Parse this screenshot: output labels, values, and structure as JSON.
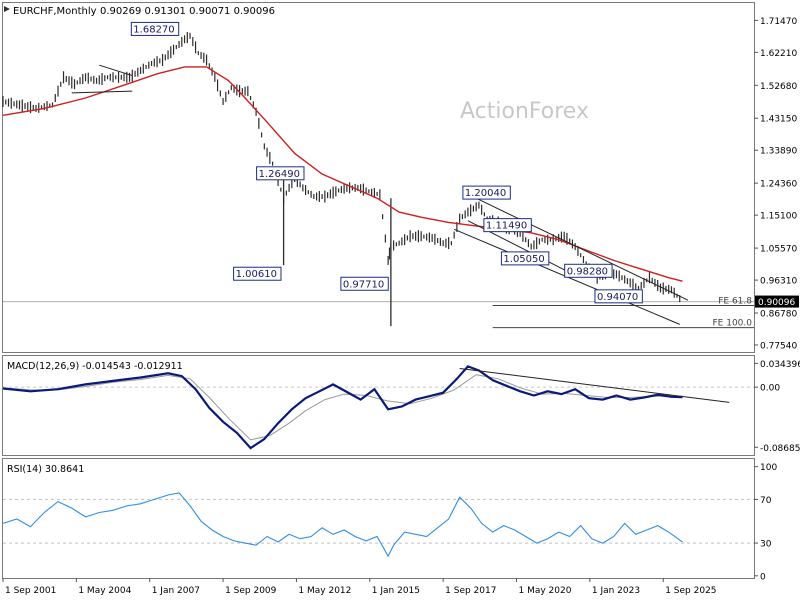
{
  "header": {
    "symbol": "EURCHF,Monthly",
    "ohlc": "0.90269 0.91301 0.90071 0.90096"
  },
  "watermark": "ActionForex",
  "colors": {
    "price": "#2b2b2b",
    "ma": "#d11f1f",
    "macd": "#0a1a7a",
    "signal": "#9a9a9a",
    "rsi": "#2f8ee6",
    "label_border": "#1a2d8c",
    "fe_line": "#444444"
  },
  "chart_data": [
    {
      "type": "line",
      "title": "EURCHF,Monthly",
      "subtitle": "0.90269 0.91301 0.90071 0.90096",
      "x_ticks": [
        "1 Sep 2001",
        "1 May 2004",
        "1 Jan 2007",
        "1 Sep 2009",
        "1 May 2012",
        "1 Jan 2015",
        "1 Sep 2017",
        "1 May 2020",
        "1 Jan 2023",
        "1 Sep 2025"
      ],
      "x_range": [
        2001.0,
        2028.3
      ],
      "y_ticks": [
        0.7754,
        0.8678,
        0.9631,
        1.0557,
        1.151,
        1.2436,
        1.3389,
        1.4315,
        1.5268,
        1.6221,
        1.7147
      ],
      "y_tick_labels": [
        "0.77540",
        "0.86780",
        "0.96310",
        "1.05570",
        "1.15100",
        "1.24360",
        "1.33890",
        "1.43150",
        "1.52680",
        "1.62210",
        "1.71470"
      ],
      "ylim": [
        0.755,
        1.765
      ],
      "last_price": "0.90096",
      "series": [
        {
          "values_note": "price",
          "x": [
            2001.0,
            2001.6,
            2002.2,
            2002.8,
            2003.2,
            2003.6,
            2004.0,
            2004.4,
            2004.8,
            2005.2,
            2005.6,
            2006.0,
            2006.4,
            2006.8,
            2007.2,
            2007.6,
            2007.8,
            2008.1,
            2008.4,
            2008.7,
            2009.0,
            2009.3,
            2009.6,
            2009.9,
            2010.2,
            2010.5,
            2010.8,
            2011.2,
            2011.6,
            2011.9,
            2012.3,
            2012.7,
            2013.1,
            2013.5,
            2013.9,
            2014.3,
            2014.7,
            2015.0,
            2015.1,
            2015.4,
            2015.8,
            2016.2,
            2016.6,
            2017.0,
            2017.3,
            2017.6,
            2017.9,
            2018.3,
            2018.6,
            2019.0,
            2019.4,
            2019.8,
            2020.2,
            2020.6,
            2021.0,
            2021.4,
            2021.8,
            2022.2,
            2022.6,
            2022.9,
            2023.3,
            2023.7,
            2024.1,
            2024.5,
            2024.9,
            2025.3,
            2025.7
          ],
          "y": [
            1.48,
            1.47,
            1.46,
            1.47,
            1.55,
            1.53,
            1.55,
            1.54,
            1.55,
            1.55,
            1.55,
            1.57,
            1.59,
            1.6,
            1.63,
            1.66,
            1.67,
            1.62,
            1.6,
            1.55,
            1.48,
            1.52,
            1.51,
            1.51,
            1.45,
            1.35,
            1.3,
            1.2,
            1.26,
            1.23,
            1.205,
            1.205,
            1.22,
            1.23,
            1.23,
            1.22,
            1.21,
            1.02,
            1.06,
            1.07,
            1.09,
            1.09,
            1.085,
            1.07,
            1.07,
            1.14,
            1.16,
            1.18,
            1.14,
            1.13,
            1.11,
            1.1,
            1.06,
            1.08,
            1.08,
            1.09,
            1.06,
            1.01,
            0.97,
            0.98,
            0.98,
            0.96,
            0.94,
            0.97,
            0.94,
            0.935,
            0.90096
          ]
        },
        {
          "values_note": "moving average",
          "x": [
            2001.0,
            2002.5,
            2004.0,
            2005.5,
            2006.6,
            2007.6,
            2008.4,
            2009.2,
            2009.8,
            2010.6,
            2011.6,
            2012.6,
            2013.6,
            2014.6,
            2015.4,
            2016.2,
            2017.2,
            2018.2,
            2019.2,
            2020.2,
            2021.2,
            2022.2,
            2023.2,
            2024.2,
            2025.2,
            2025.7
          ],
          "y": [
            1.44,
            1.46,
            1.49,
            1.53,
            1.56,
            1.58,
            1.58,
            1.54,
            1.49,
            1.42,
            1.33,
            1.27,
            1.235,
            1.2,
            1.16,
            1.145,
            1.13,
            1.12,
            1.11,
            1.1,
            1.08,
            1.05,
            1.02,
            0.995,
            0.97,
            0.96
          ]
        }
      ],
      "annotations": [
        "1.68270",
        "1.26490",
        "1.00610",
        "0.97710",
        "1.20040",
        "1.11490",
        "1.05050",
        "0.98280",
        "0.94070"
      ],
      "annotation_points": [
        {
          "x": 2007.3,
          "y": 1.6827
        },
        {
          "x": 2010.4,
          "y": 1.2649
        },
        {
          "x": 2011.2,
          "y": 1.0061
        },
        {
          "x": 2015.1,
          "y": 0.9771
        },
        {
          "x": 2017.9,
          "y": 1.2004
        },
        {
          "x": 2018.3,
          "y": 1.1149
        },
        {
          "x": 2019.3,
          "y": 1.0505
        },
        {
          "x": 2021.6,
          "y": 0.9828
        },
        {
          "x": 2022.7,
          "y": 0.9407
        }
      ],
      "levels": [
        {
          "label": "FE 61.8",
          "y": 0.8895
        },
        {
          "label": "FE 100.0",
          "y": 0.8255
        }
      ],
      "level_label_prefix": [
        "FE 61.8",
        "FE 100.0"
      ],
      "current_line_y": 0.90096
    },
    {
      "type": "line",
      "title": "MACD(12,26,9) -0.014543 -0.012911",
      "y_ticks": [
        0.034396,
        0.0,
        -0.086854
      ],
      "y_tick_labels": [
        "0.034396",
        "0.00",
        "-0.086854"
      ],
      "ylim": [
        -0.098,
        0.045
      ],
      "series": [
        {
          "values_note": "macd",
          "x": [
            2001.0,
            2002.0,
            2003.0,
            2004.0,
            2005.0,
            2006.0,
            2007.0,
            2007.5,
            2008.0,
            2008.5,
            2009.0,
            2009.5,
            2010.0,
            2010.5,
            2011.0,
            2011.5,
            2012.0,
            2012.5,
            2013.0,
            2013.5,
            2014.0,
            2014.5,
            2015.0,
            2015.5,
            2016.0,
            2016.5,
            2017.0,
            2017.5,
            2017.9,
            2018.3,
            2018.8,
            2019.3,
            2019.8,
            2020.3,
            2020.8,
            2021.3,
            2021.8,
            2022.3,
            2022.8,
            2023.3,
            2023.8,
            2024.3,
            2024.8,
            2025.3,
            2025.7
          ],
          "y": [
            -0.002,
            -0.006,
            -0.003,
            0.004,
            0.009,
            0.014,
            0.02,
            0.016,
            -0.003,
            -0.03,
            -0.05,
            -0.066,
            -0.088,
            -0.075,
            -0.052,
            -0.032,
            -0.016,
            -0.006,
            0.004,
            -0.007,
            -0.018,
            -0.003,
            -0.032,
            -0.028,
            -0.018,
            -0.013,
            -0.008,
            0.012,
            0.03,
            0.024,
            0.01,
            0.002,
            -0.006,
            -0.012,
            -0.006,
            -0.01,
            -0.003,
            -0.016,
            -0.018,
            -0.012,
            -0.018,
            -0.015,
            -0.011,
            -0.014,
            -0.0145
          ]
        },
        {
          "values_note": "signal",
          "x": [
            2001.0,
            2002.0,
            2003.0,
            2004.0,
            2005.0,
            2006.0,
            2007.0,
            2007.8,
            2008.5,
            2009.2,
            2010.0,
            2010.7,
            2011.4,
            2012.0,
            2012.7,
            2013.4,
            2014.2,
            2015.0,
            2015.8,
            2016.6,
            2017.4,
            2018.2,
            2019.0,
            2019.8,
            2020.6,
            2021.4,
            2022.2,
            2023.0,
            2023.8,
            2024.6,
            2025.7
          ],
          "y": [
            -0.001,
            -0.004,
            -0.004,
            0.001,
            0.007,
            0.011,
            0.017,
            0.012,
            -0.015,
            -0.045,
            -0.076,
            -0.07,
            -0.052,
            -0.034,
            -0.018,
            -0.01,
            -0.012,
            -0.02,
            -0.024,
            -0.016,
            -0.004,
            0.018,
            0.012,
            -0.001,
            -0.01,
            -0.009,
            -0.012,
            -0.015,
            -0.015,
            -0.013,
            -0.0129
          ]
        }
      ],
      "trendline": {
        "x": [
          2017.6,
          2027.4
        ],
        "y": [
          0.027,
          -0.022
        ]
      }
    },
    {
      "type": "line",
      "title": "RSI(14) 30.8641",
      "y_ticks": [
        100,
        70,
        30,
        0
      ],
      "y_tick_labels": [
        "100",
        "70",
        "30",
        "0"
      ],
      "ylim": [
        -2,
        107
      ],
      "series": [
        {
          "values_note": "rsi",
          "x": [
            2001.0,
            2001.5,
            2002.0,
            2002.5,
            2003.0,
            2003.5,
            2004.0,
            2004.5,
            2005.0,
            2005.5,
            2006.0,
            2006.5,
            2007.0,
            2007.4,
            2007.8,
            2008.2,
            2008.6,
            2009.0,
            2009.4,
            2009.8,
            2010.2,
            2010.6,
            2011.0,
            2011.4,
            2011.8,
            2012.2,
            2012.6,
            2013.0,
            2013.4,
            2013.8,
            2014.2,
            2014.6,
            2015.0,
            2015.2,
            2015.6,
            2016.0,
            2016.4,
            2016.8,
            2017.2,
            2017.6,
            2018.0,
            2018.4,
            2018.8,
            2019.2,
            2019.6,
            2020.0,
            2020.4,
            2020.8,
            2021.2,
            2021.6,
            2022.0,
            2022.4,
            2022.8,
            2023.2,
            2023.6,
            2024.0,
            2024.4,
            2024.8,
            2025.2,
            2025.7
          ],
          "y": [
            48,
            52,
            45,
            58,
            68,
            62,
            54,
            58,
            60,
            64,
            66,
            70,
            74,
            76,
            64,
            50,
            42,
            36,
            32,
            30,
            28,
            36,
            31,
            38,
            34,
            36,
            44,
            38,
            42,
            36,
            32,
            36,
            18,
            28,
            40,
            38,
            36,
            44,
            52,
            72,
            62,
            48,
            40,
            46,
            42,
            36,
            30,
            34,
            40,
            36,
            46,
            34,
            30,
            36,
            48,
            38,
            42,
            46,
            40,
            30.86
          ]
        }
      ],
      "levels": [
        70,
        30
      ]
    }
  ]
}
